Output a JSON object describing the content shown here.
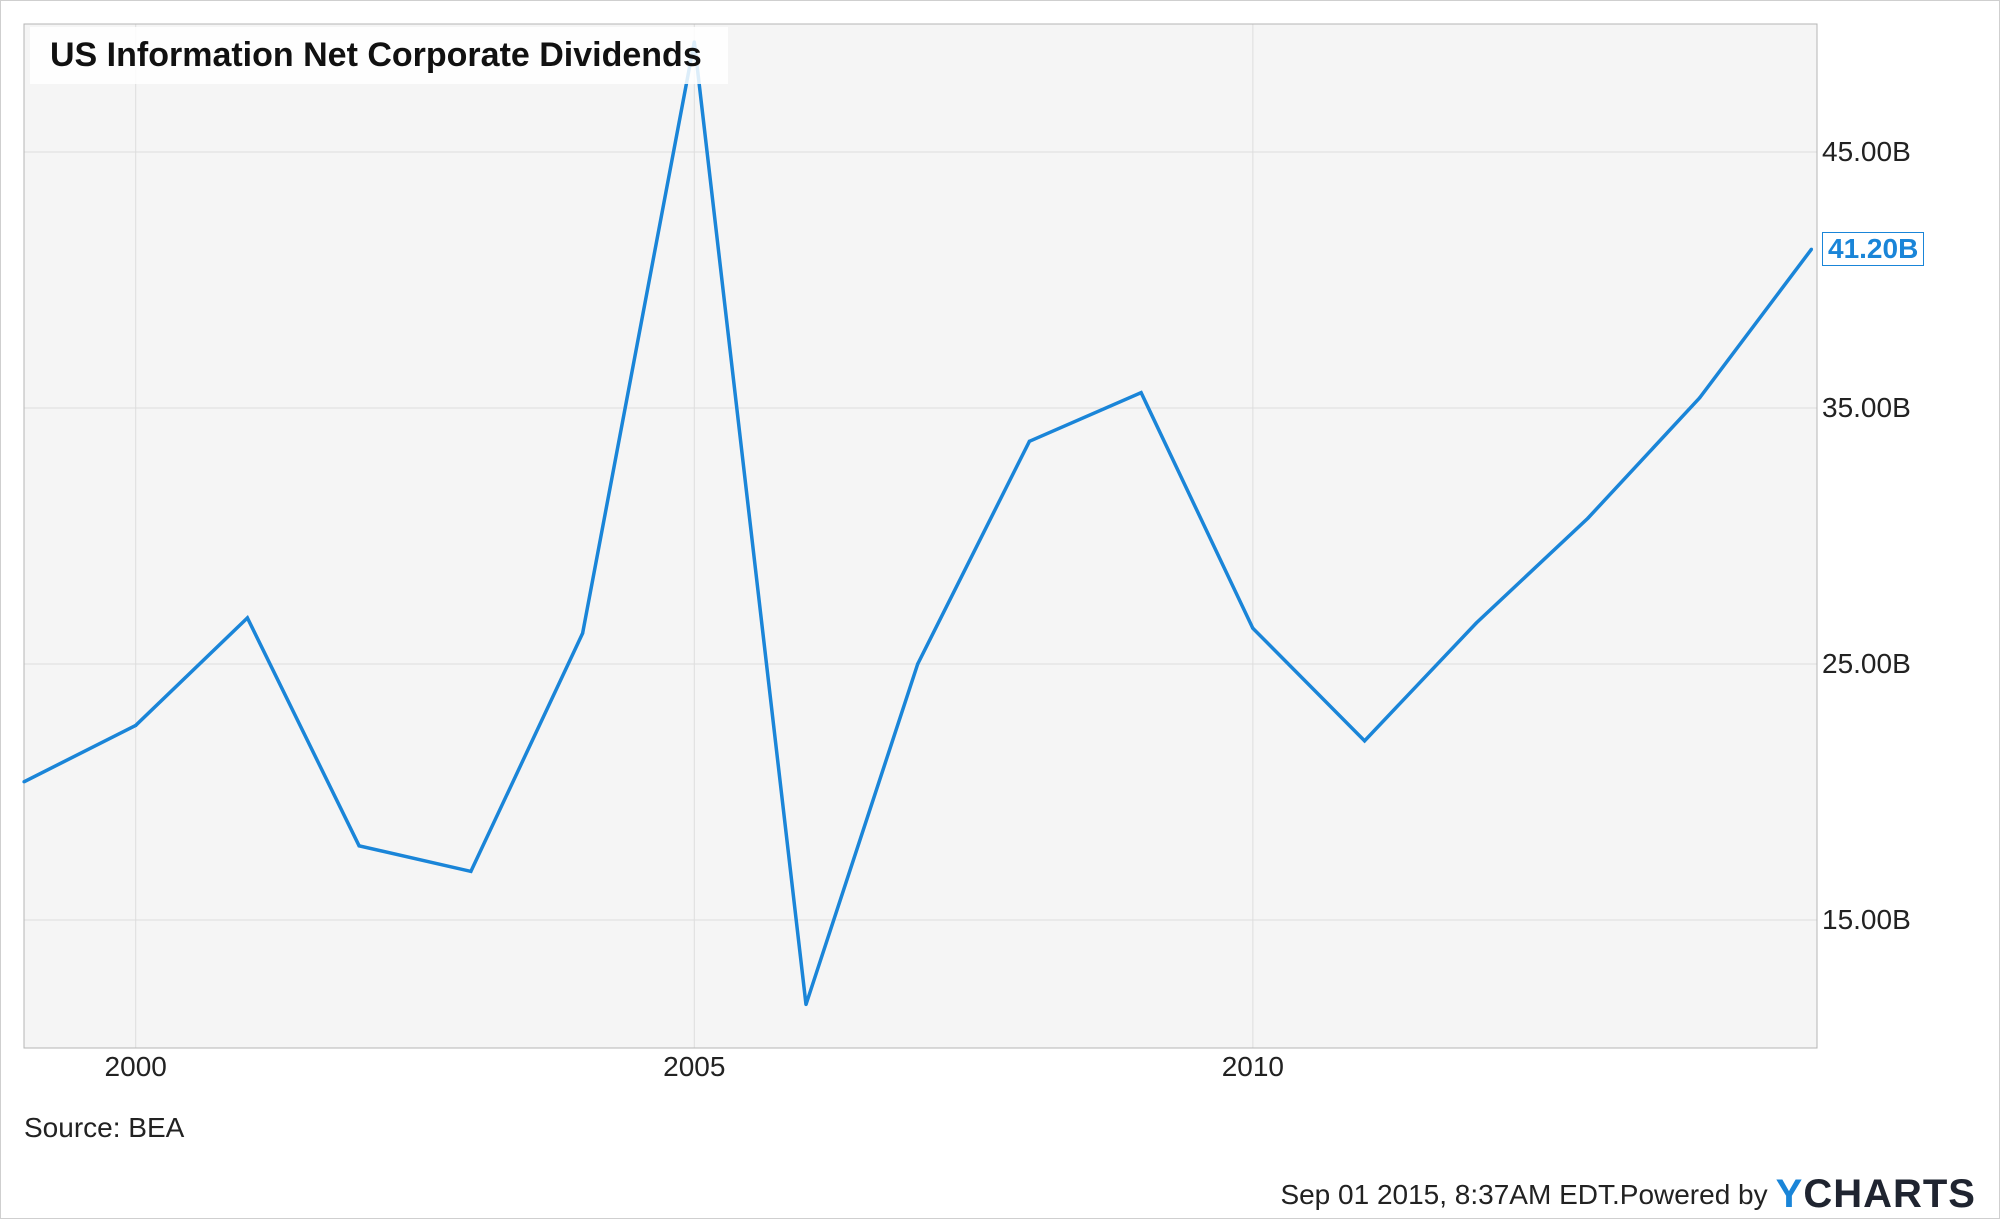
{
  "chart_data": {
    "type": "line",
    "title": "US Information Net Corporate Dividends",
    "xlabel": "",
    "ylabel": "",
    "x": [
      1999,
      2000,
      2001,
      2002,
      2003,
      2004,
      2005,
      2006,
      2007,
      2008,
      2009,
      2010,
      2011,
      2012,
      2013,
      2014,
      2015
    ],
    "series": [
      {
        "values": [
          20.4,
          22.6,
          26.8,
          17.9,
          16.9,
          26.2,
          49.3,
          11.7,
          25.0,
          33.7,
          35.6,
          26.4,
          22.0,
          26.6,
          30.7,
          35.4,
          41.2
        ],
        "color": "#1a85d8"
      }
    ],
    "xlim": [
      1999,
      2015.05
    ],
    "ylim": [
      10.0,
      50.0
    ],
    "x_ticks": [
      {
        "value": 2000,
        "label": "2000"
      },
      {
        "value": 2005,
        "label": "2005"
      },
      {
        "value": 2010,
        "label": "2010"
      }
    ],
    "y_ticks": [
      {
        "value": 15,
        "label": "15.00B"
      },
      {
        "value": 25,
        "label": "25.00B"
      },
      {
        "value": 35,
        "label": "35.00B"
      },
      {
        "value": 45,
        "label": "45.00B"
      }
    ],
    "last_value_label": "41.20B",
    "grid": true,
    "legend": "none",
    "plot_background": "#f5f5f5",
    "grid_color": "#dddddd"
  },
  "source": "Source: BEA",
  "timestamp": "Sep 01 2015, 8:37AM EDT.",
  "powered_by": "Powered by",
  "brand": {
    "prefix": "Y",
    "rest": "CHARTS",
    "accent_color": "#1a85d8"
  }
}
